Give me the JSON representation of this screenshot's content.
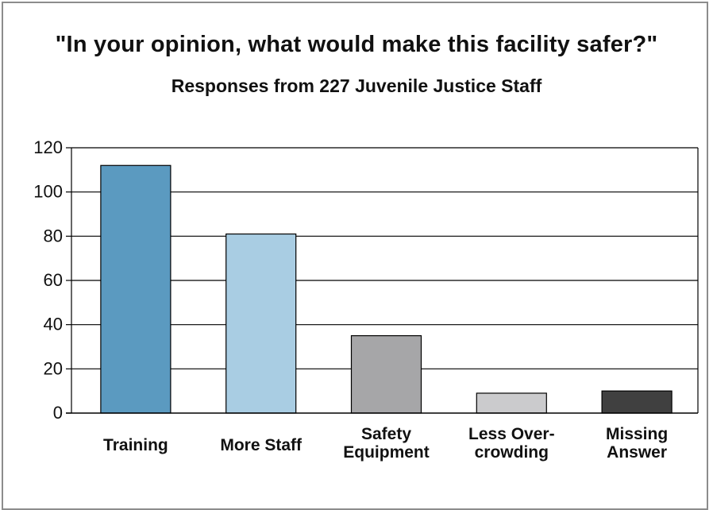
{
  "chart_data": {
    "type": "bar",
    "title": "\"In your opinion, what would make this facility safer?\"",
    "subtitle": "Responses from 227 Juvenile Justice Staff",
    "categories": [
      [
        "Training"
      ],
      [
        "More Staff"
      ],
      [
        "Safety",
        "Equipment"
      ],
      [
        "Less Over-",
        "crowding"
      ],
      [
        "Missing",
        "Answer"
      ]
    ],
    "values": [
      112,
      81,
      35,
      9,
      10
    ],
    "colors": [
      "#5b9ac0",
      "#a9cde3",
      "#a6a6a8",
      "#cbcbcd",
      "#404040"
    ],
    "ylim": [
      0,
      120
    ],
    "yticks": [
      0,
      20,
      40,
      60,
      80,
      100,
      120
    ],
    "grid": true,
    "xlabel": "",
    "ylabel": ""
  }
}
